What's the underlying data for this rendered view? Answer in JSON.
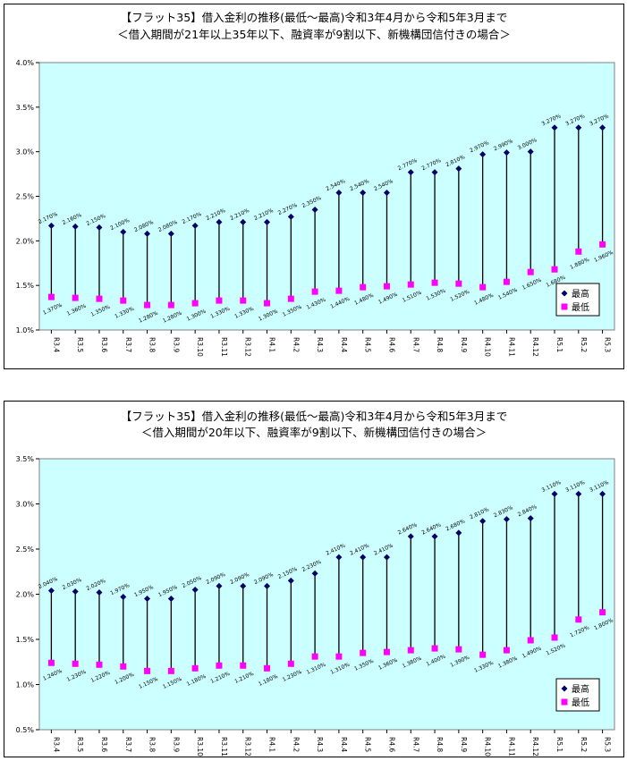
{
  "chart_data": [
    {
      "type": "line",
      "title": "【フラット35】借入金利の推移(最低～最高)令和3年4月から令和5年3月まで",
      "subtitle": "＜借入期間が21年以上35年以下、融資率が9割以下、新機構団信付きの場合＞",
      "categories": [
        "R3.4",
        "R3.5",
        "R3.6",
        "R3.7",
        "R3.8",
        "R3.9",
        "R3.10",
        "R3.11",
        "R3.12",
        "R4.1",
        "R4.2",
        "R4.3",
        "R4.4",
        "R4.5",
        "R4.6",
        "R4.7",
        "R4.8",
        "R4.9",
        "R4.10",
        "R4.11",
        "R4.12",
        "R5.1",
        "R5.2",
        "R5.3"
      ],
      "ylim": [
        1.0,
        4.0
      ],
      "yticks": [
        "1.0%",
        "1.5%",
        "2.0%",
        "2.5%",
        "3.0%",
        "3.5%",
        "4.0%"
      ],
      "grid": false,
      "legend": "right",
      "series": [
        {
          "name": "最高",
          "color": "#000066",
          "marker": "diamond",
          "values": [
            2.17,
            2.16,
            2.15,
            2.1,
            2.08,
            2.08,
            2.17,
            2.21,
            2.21,
            2.21,
            2.27,
            2.35,
            2.54,
            2.54,
            2.54,
            2.77,
            2.77,
            2.81,
            2.97,
            2.99,
            3.0,
            3.27,
            3.27,
            3.27
          ],
          "labels": [
            "2.170%",
            "2.160%",
            "2.150%",
            "2.100%",
            "2.080%",
            "2.080%",
            "2.170%",
            "2.210%",
            "2.210%",
            "2.210%",
            "2.270%",
            "2.350%",
            "2.540%",
            "2.540%",
            "2.540%",
            "2.770%",
            "2.770%",
            "2.810%",
            "2.970%",
            "2.990%",
            "3.000%",
            "3.270%",
            "3.270%",
            "3.270%"
          ]
        },
        {
          "name": "最低",
          "color": "#ff00ff",
          "marker": "square",
          "values": [
            1.37,
            1.36,
            1.35,
            1.33,
            1.28,
            1.28,
            1.3,
            1.33,
            1.33,
            1.3,
            1.35,
            1.43,
            1.44,
            1.48,
            1.49,
            1.51,
            1.53,
            1.52,
            1.48,
            1.54,
            1.65,
            1.68,
            1.88,
            1.96
          ],
          "labels": [
            "1.370%",
            "1.360%",
            "1.350%",
            "1.330%",
            "1.280%",
            "1.280%",
            "1.300%",
            "1.330%",
            "1.330%",
            "1.300%",
            "1.350%",
            "1.430%",
            "1.440%",
            "1.480%",
            "1.490%",
            "1.510%",
            "1.530%",
            "1.520%",
            "1.480%",
            "1.540%",
            "1.650%",
            "1.680%",
            "1.880%",
            "1.960%"
          ]
        }
      ]
    },
    {
      "type": "line",
      "title": "【フラット35】借入金利の推移(最低～最高)令和3年4月から令和5年3月まで",
      "subtitle": "＜借入期間が20年以下、融資率が9割以下、新機構団信付きの場合＞",
      "categories": [
        "R3.4",
        "R3.5",
        "R3.6",
        "R3.7",
        "R3.8",
        "R3.9",
        "R3.10",
        "R3.11",
        "R3.12",
        "R4.1",
        "R4.2",
        "R4.3",
        "R4.4",
        "R4.5",
        "R4.6",
        "R4.7",
        "R4.8",
        "R4.9",
        "R4.10",
        "R4.11",
        "R4.12",
        "R5.1",
        "R5.2",
        "R5.3"
      ],
      "ylim": [
        0.5,
        3.5
      ],
      "yticks": [
        "0.5%",
        "1.0%",
        "1.5%",
        "2.0%",
        "2.5%",
        "3.0%",
        "3.5%"
      ],
      "grid": false,
      "legend": "bottom-right",
      "series": [
        {
          "name": "最高",
          "color": "#000066",
          "marker": "diamond",
          "values": [
            2.04,
            2.03,
            2.02,
            1.97,
            1.95,
            1.95,
            2.05,
            2.09,
            2.09,
            2.09,
            2.15,
            2.23,
            2.41,
            2.41,
            2.41,
            2.64,
            2.64,
            2.68,
            2.81,
            2.83,
            2.84,
            3.11,
            3.11,
            3.11
          ],
          "labels": [
            "2.040%",
            "2.030%",
            "2.020%",
            "1.970%",
            "1.950%",
            "1.950%",
            "2.050%",
            "2.090%",
            "2.090%",
            "2.090%",
            "2.150%",
            "2.230%",
            "2.410%",
            "2.410%",
            "2.410%",
            "2.640%",
            "2.640%",
            "2.680%",
            "2.810%",
            "2.830%",
            "2.840%",
            "3.110%",
            "3.110%",
            "3.110%"
          ]
        },
        {
          "name": "最低",
          "color": "#ff00ff",
          "marker": "square",
          "values": [
            1.24,
            1.23,
            1.22,
            1.2,
            1.15,
            1.15,
            1.18,
            1.21,
            1.21,
            1.18,
            1.23,
            1.31,
            1.31,
            1.35,
            1.36,
            1.38,
            1.4,
            1.39,
            1.33,
            1.38,
            1.49,
            1.52,
            1.72,
            1.8
          ],
          "labels": [
            "1.240%",
            "1.230%",
            "1.220%",
            "1.200%",
            "1.150%",
            "1.150%",
            "1.180%",
            "1.210%",
            "1.210%",
            "1.180%",
            "1.230%",
            "1.310%",
            "1.310%",
            "1.350%",
            "1.360%",
            "1.380%",
            "1.400%",
            "1.390%",
            "1.330%",
            "1.380%",
            "1.490%",
            "1.520%",
            "1.720%",
            "1.800%"
          ]
        }
      ]
    }
  ]
}
